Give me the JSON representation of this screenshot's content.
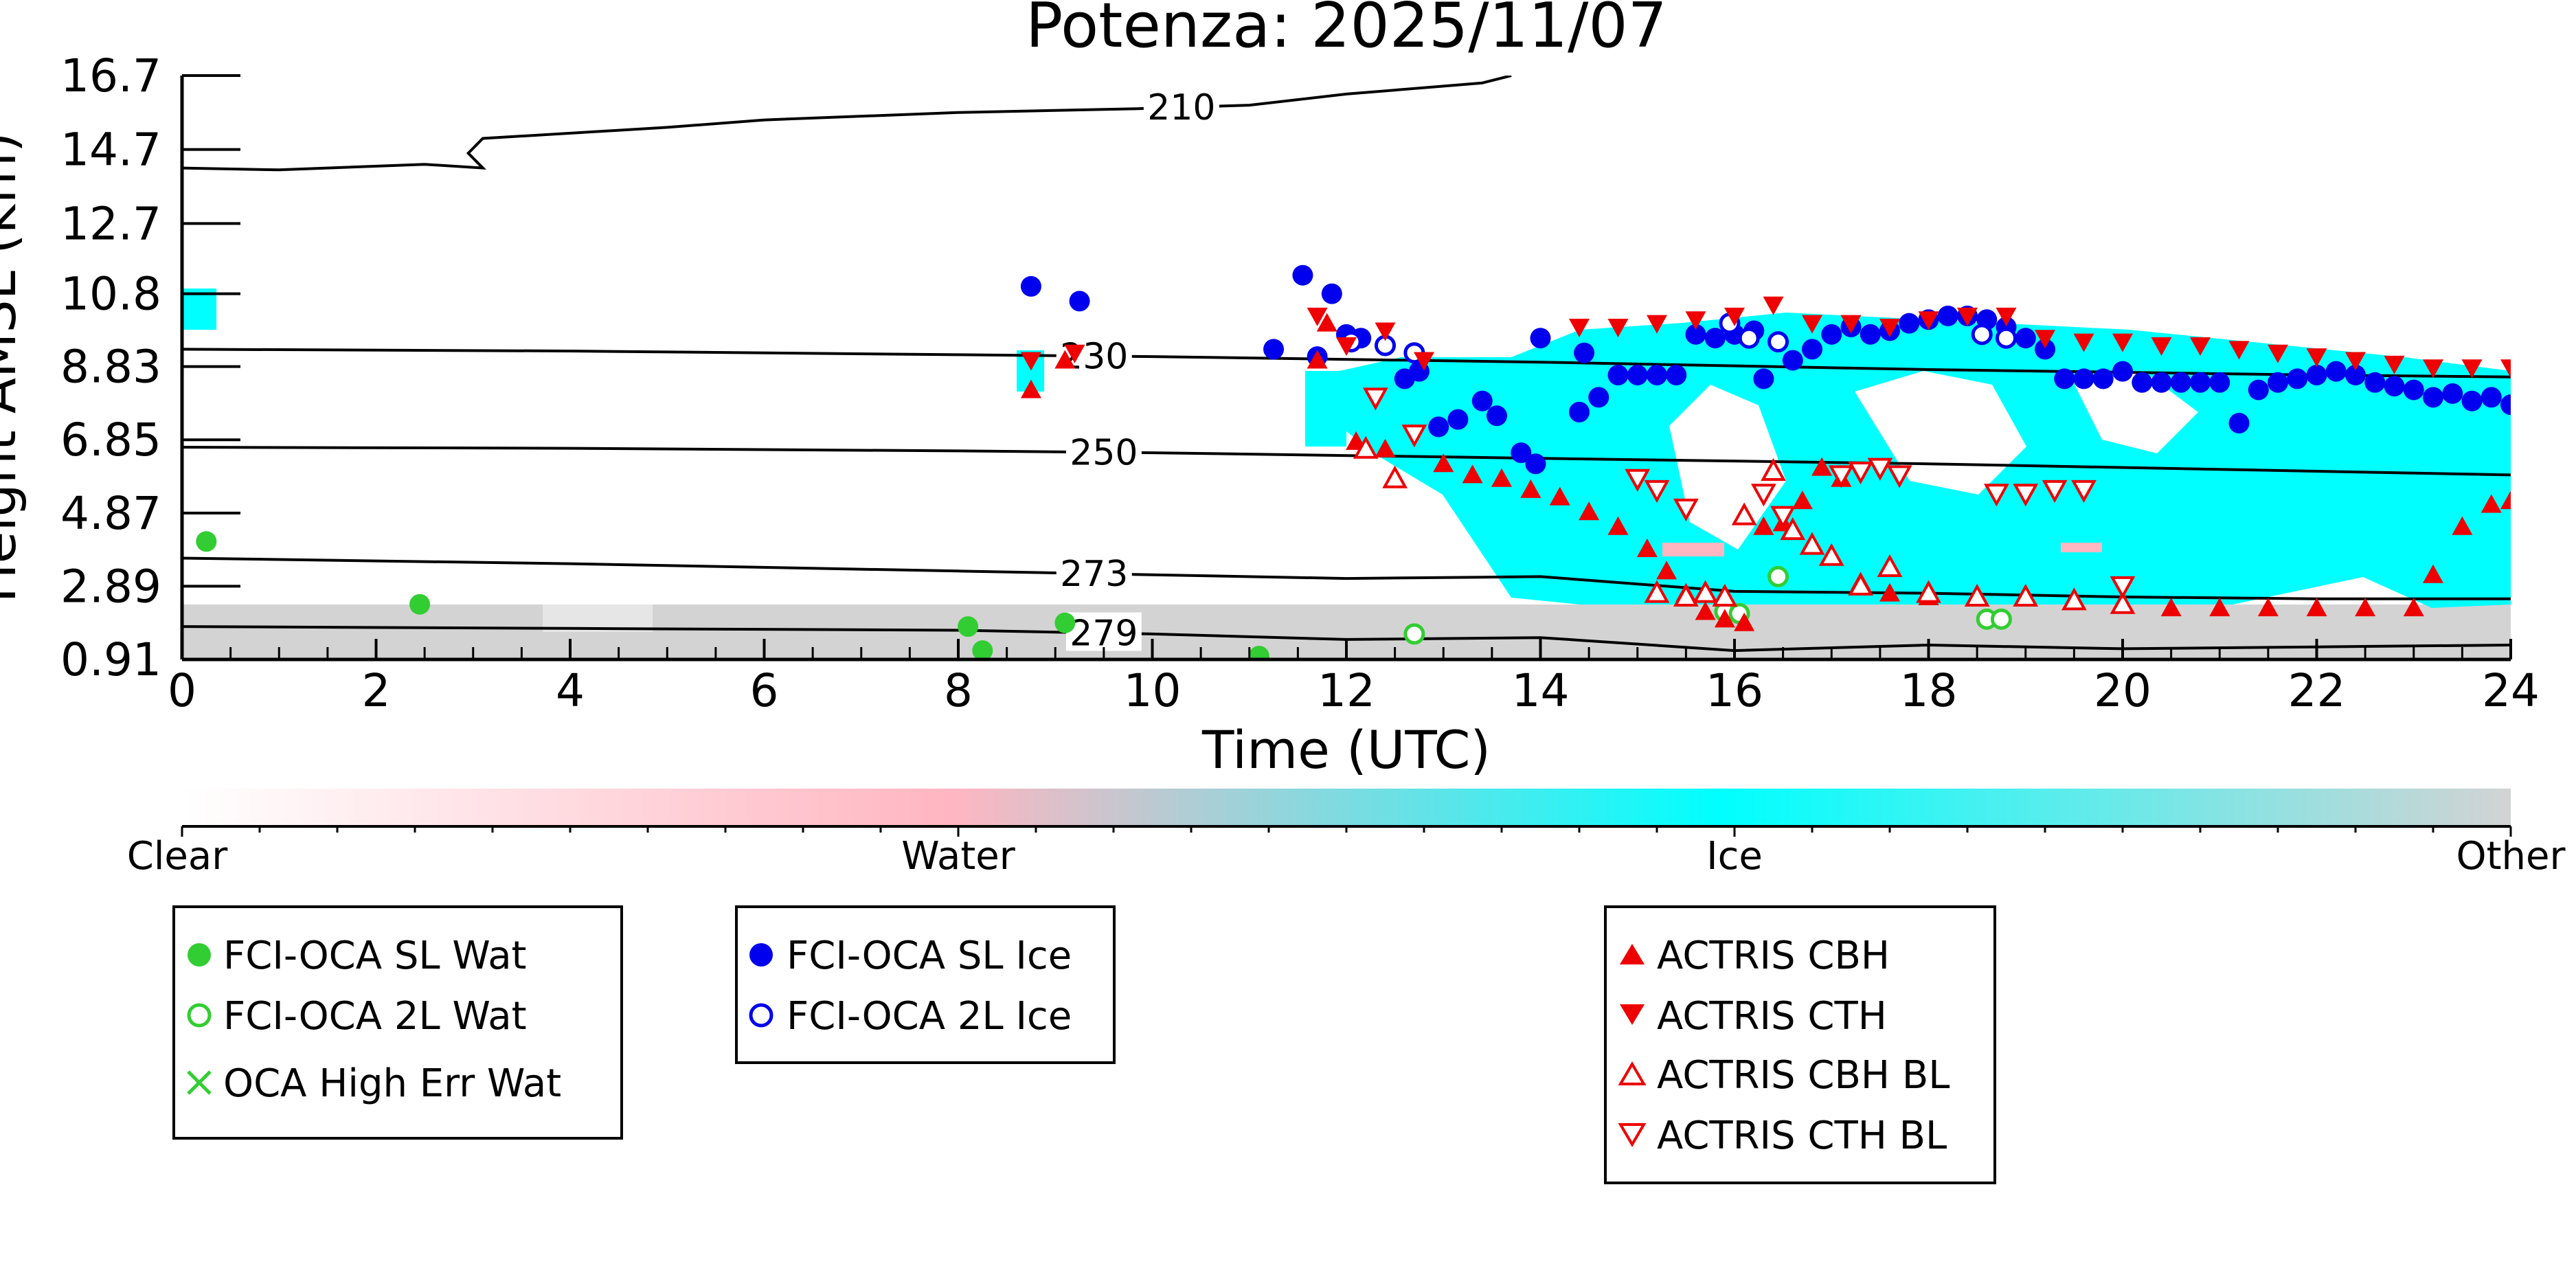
{
  "chart_data": {
    "type": "scatter",
    "title": "Potenza: 2025/11/07",
    "xlabel": "Time (UTC)",
    "ylabel": "Height AMSL (km)",
    "xlim": [
      0,
      24
    ],
    "ylim": [
      0.91,
      16.7
    ],
    "x_ticks": [
      "0",
      "2",
      "4",
      "6",
      "8",
      "10",
      "12",
      "14",
      "16",
      "18",
      "20",
      "22",
      "24"
    ],
    "y_ticks": [
      "0.91",
      "2.89",
      "4.87",
      "6.85",
      "8.83",
      "10.8",
      "12.7",
      "14.7",
      "16.7"
    ],
    "y_tick_values": [
      0.91,
      2.89,
      4.87,
      6.85,
      8.83,
      10.8,
      12.7,
      14.7,
      16.7
    ],
    "grid": false,
    "colorbar": {
      "labels": [
        "Clear",
        "Water",
        "Ice",
        "Other"
      ],
      "colors": [
        "#ffffff",
        "#ffb6c1",
        "#00ffff",
        "#d3d3d3"
      ]
    },
    "contours": [
      {
        "label": "210",
        "label_x": 10.3,
        "points": [
          [
            0,
            14.2
          ],
          [
            1,
            14.15
          ],
          [
            2.5,
            14.3
          ],
          [
            3.1,
            14.2
          ],
          [
            2.95,
            14.6
          ],
          [
            3.1,
            15.0
          ],
          [
            5.0,
            15.3
          ],
          [
            6.0,
            15.5
          ],
          [
            8.0,
            15.7
          ],
          [
            9.8,
            15.8
          ],
          [
            11,
            15.9
          ],
          [
            12,
            16.2
          ],
          [
            13.4,
            16.5
          ],
          [
            13.7,
            16.7
          ]
        ]
      },
      {
        "label": "230",
        "label_x": 9.4,
        "points": [
          [
            0,
            9.3
          ],
          [
            4,
            9.25
          ],
          [
            8,
            9.15
          ],
          [
            10,
            9.1
          ],
          [
            14,
            8.95
          ],
          [
            18,
            8.75
          ],
          [
            22,
            8.6
          ],
          [
            24,
            8.55
          ]
        ]
      },
      {
        "label": "250",
        "label_x": 9.5,
        "points": [
          [
            0,
            6.65
          ],
          [
            4,
            6.62
          ],
          [
            8,
            6.55
          ],
          [
            10,
            6.5
          ],
          [
            14,
            6.35
          ],
          [
            18,
            6.2
          ],
          [
            22,
            6.0
          ],
          [
            24,
            5.9
          ]
        ]
      },
      {
        "label": "273",
        "label_x": 9.4,
        "points": [
          [
            0,
            3.65
          ],
          [
            4,
            3.5
          ],
          [
            8,
            3.3
          ],
          [
            10,
            3.2
          ],
          [
            12,
            3.1
          ],
          [
            14,
            3.15
          ],
          [
            16,
            2.75
          ],
          [
            18,
            2.7
          ],
          [
            20,
            2.6
          ],
          [
            22,
            2.55
          ],
          [
            24,
            2.55
          ]
        ]
      },
      {
        "label": "279",
        "label_x": 9.5,
        "points": [
          [
            0,
            1.8
          ],
          [
            4,
            1.75
          ],
          [
            8,
            1.7
          ],
          [
            10,
            1.6
          ],
          [
            12,
            1.45
          ],
          [
            14,
            1.5
          ],
          [
            16,
            1.15
          ],
          [
            18,
            1.3
          ],
          [
            20,
            1.2
          ],
          [
            22,
            1.25
          ],
          [
            24,
            1.3
          ]
        ]
      }
    ],
    "series": [
      {
        "name": "FCI-OCA SL Wat",
        "marker": "filled-circle",
        "color": "#32cd32",
        "points": [
          [
            0.25,
            4.1
          ],
          [
            2.45,
            2.4
          ],
          [
            8.1,
            1.8
          ],
          [
            8.25,
            1.15
          ],
          [
            9.1,
            1.9
          ],
          [
            11.1,
            1.0
          ]
        ]
      },
      {
        "name": "FCI-OCA 2L Wat",
        "marker": "open-circle",
        "color": "#32cd32",
        "points": [
          [
            12.7,
            1.6
          ],
          [
            15.9,
            2.2
          ],
          [
            16.05,
            2.15
          ],
          [
            16.45,
            3.15
          ],
          [
            18.6,
            2.0
          ],
          [
            18.75,
            2.0
          ]
        ]
      },
      {
        "name": "OCA High Err Wat",
        "marker": "x",
        "color": "#32cd32",
        "points": []
      },
      {
        "name": "FCI-OCA SL Ice",
        "marker": "filled-circle",
        "color": "#0000ee",
        "points": [
          [
            8.75,
            11.0
          ],
          [
            9.25,
            10.6
          ],
          [
            11.25,
            9.3
          ],
          [
            11.55,
            11.3
          ],
          [
            11.7,
            9.1
          ],
          [
            11.85,
            10.8
          ],
          [
            12.0,
            9.7
          ],
          [
            12.15,
            9.6
          ],
          [
            12.6,
            8.5
          ],
          [
            12.75,
            8.7
          ],
          [
            12.95,
            7.2
          ],
          [
            13.15,
            7.4
          ],
          [
            13.4,
            7.9
          ],
          [
            13.55,
            7.5
          ],
          [
            13.8,
            6.5
          ],
          [
            13.95,
            6.2
          ],
          [
            14.0,
            9.6
          ],
          [
            14.4,
            7.6
          ],
          [
            14.6,
            8.0
          ],
          [
            14.45,
            9.2
          ],
          [
            14.8,
            8.6
          ],
          [
            15.0,
            8.6
          ],
          [
            15.2,
            8.6
          ],
          [
            15.4,
            8.6
          ],
          [
            15.6,
            9.7
          ],
          [
            15.8,
            9.6
          ],
          [
            16.0,
            9.7
          ],
          [
            16.2,
            9.8
          ],
          [
            16.3,
            8.5
          ],
          [
            16.6,
            9.0
          ],
          [
            16.8,
            9.3
          ],
          [
            17.0,
            9.7
          ],
          [
            17.2,
            9.9
          ],
          [
            17.4,
            9.7
          ],
          [
            17.6,
            9.8
          ],
          [
            17.8,
            10.0
          ],
          [
            18.0,
            10.1
          ],
          [
            18.2,
            10.2
          ],
          [
            18.4,
            10.2
          ],
          [
            18.6,
            10.1
          ],
          [
            18.8,
            9.9
          ],
          [
            19.0,
            9.6
          ],
          [
            19.2,
            9.3
          ],
          [
            19.4,
            8.5
          ],
          [
            19.6,
            8.5
          ],
          [
            19.8,
            8.5
          ],
          [
            20.0,
            8.7
          ],
          [
            20.2,
            8.4
          ],
          [
            20.4,
            8.4
          ],
          [
            20.6,
            8.4
          ],
          [
            20.8,
            8.4
          ],
          [
            21.0,
            8.4
          ],
          [
            21.2,
            7.3
          ],
          [
            21.4,
            8.2
          ],
          [
            21.6,
            8.4
          ],
          [
            21.8,
            8.5
          ],
          [
            22.0,
            8.6
          ],
          [
            22.2,
            8.7
          ],
          [
            22.4,
            8.6
          ],
          [
            22.6,
            8.4
          ],
          [
            22.8,
            8.3
          ],
          [
            23.0,
            8.2
          ],
          [
            23.2,
            8.0
          ],
          [
            23.4,
            8.1
          ],
          [
            23.6,
            7.9
          ],
          [
            23.8,
            8.0
          ],
          [
            24.0,
            7.8
          ]
        ]
      },
      {
        "name": "FCI-OCA 2L Ice",
        "marker": "open-circle",
        "color": "#0000ee",
        "points": [
          [
            12.05,
            9.5
          ],
          [
            12.4,
            9.4
          ],
          [
            12.7,
            9.2
          ],
          [
            15.95,
            10.0
          ],
          [
            16.15,
            9.6
          ],
          [
            16.45,
            9.5
          ],
          [
            18.55,
            9.7
          ],
          [
            18.8,
            9.6
          ]
        ]
      },
      {
        "name": "ACTRIS CBH",
        "marker": "triangle-up",
        "color": "#ee0000",
        "points": [
          [
            8.75,
            8.2
          ],
          [
            9.1,
            9.0
          ],
          [
            11.7,
            9.0
          ],
          [
            11.8,
            10.0
          ],
          [
            12.1,
            6.8
          ],
          [
            12.4,
            6.6
          ],
          [
            13.0,
            6.2
          ],
          [
            13.3,
            5.9
          ],
          [
            13.6,
            5.8
          ],
          [
            13.9,
            5.5
          ],
          [
            14.2,
            5.3
          ],
          [
            14.5,
            4.9
          ],
          [
            14.8,
            4.5
          ],
          [
            15.1,
            3.9
          ],
          [
            15.3,
            3.3
          ],
          [
            15.5,
            2.7
          ],
          [
            15.7,
            2.2
          ],
          [
            15.9,
            2.0
          ],
          [
            16.1,
            1.9
          ],
          [
            16.3,
            4.5
          ],
          [
            16.5,
            4.6
          ],
          [
            16.7,
            5.2
          ],
          [
            16.9,
            6.1
          ],
          [
            17.1,
            5.8
          ],
          [
            17.3,
            3.0
          ],
          [
            17.6,
            2.7
          ],
          [
            18.0,
            2.6
          ],
          [
            18.5,
            2.6
          ],
          [
            19.0,
            2.6
          ],
          [
            19.5,
            2.5
          ],
          [
            20.0,
            2.4
          ],
          [
            20.5,
            2.3
          ],
          [
            21.0,
            2.3
          ],
          [
            21.5,
            2.3
          ],
          [
            22.0,
            2.3
          ],
          [
            22.5,
            2.3
          ],
          [
            23.0,
            2.3
          ],
          [
            23.2,
            3.2
          ],
          [
            23.5,
            4.5
          ],
          [
            23.8,
            5.1
          ],
          [
            24.0,
            5.2
          ]
        ]
      },
      {
        "name": "ACTRIS CTH",
        "marker": "triangle-down",
        "color": "#ee0000",
        "points": [
          [
            8.75,
            9.0
          ],
          [
            9.2,
            9.2
          ],
          [
            11.7,
            10.2
          ],
          [
            12.0,
            9.4
          ],
          [
            12.4,
            9.8
          ],
          [
            12.8,
            9.0
          ],
          [
            14.4,
            9.9
          ],
          [
            14.8,
            9.9
          ],
          [
            15.2,
            10.0
          ],
          [
            15.6,
            10.1
          ],
          [
            16.0,
            10.2
          ],
          [
            16.4,
            10.5
          ],
          [
            16.8,
            10.0
          ],
          [
            17.2,
            10.0
          ],
          [
            17.6,
            9.9
          ],
          [
            18.0,
            10.1
          ],
          [
            18.4,
            10.2
          ],
          [
            18.8,
            10.2
          ],
          [
            19.2,
            9.6
          ],
          [
            19.6,
            9.5
          ],
          [
            20.0,
            9.5
          ],
          [
            20.4,
            9.4
          ],
          [
            20.8,
            9.4
          ],
          [
            21.2,
            9.3
          ],
          [
            21.6,
            9.2
          ],
          [
            22.0,
            9.1
          ],
          [
            22.4,
            9.0
          ],
          [
            22.8,
            8.9
          ],
          [
            23.2,
            8.8
          ],
          [
            23.6,
            8.8
          ],
          [
            24.0,
            8.8
          ]
        ]
      },
      {
        "name": "ACTRIS CBH BL",
        "marker": "open-triangle-up",
        "color": "#ee0000",
        "points": [
          [
            12.2,
            6.6
          ],
          [
            12.5,
            5.8
          ],
          [
            15.2,
            2.7
          ],
          [
            15.5,
            2.6
          ],
          [
            15.7,
            2.7
          ],
          [
            15.9,
            2.6
          ],
          [
            16.1,
            4.8
          ],
          [
            16.4,
            6.0
          ],
          [
            16.6,
            4.4
          ],
          [
            16.8,
            4.0
          ],
          [
            17.0,
            3.7
          ],
          [
            17.3,
            2.9
          ],
          [
            17.6,
            3.4
          ],
          [
            18.0,
            2.7
          ],
          [
            18.5,
            2.6
          ],
          [
            19.0,
            2.6
          ],
          [
            19.5,
            2.5
          ],
          [
            20.0,
            2.4
          ]
        ]
      },
      {
        "name": "ACTRIS CTH BL",
        "marker": "open-triangle-down",
        "color": "#ee0000",
        "points": [
          [
            12.3,
            8.0
          ],
          [
            12.7,
            7.0
          ],
          [
            15.0,
            5.8
          ],
          [
            15.2,
            5.5
          ],
          [
            15.5,
            5.0
          ],
          [
            16.3,
            5.4
          ],
          [
            16.5,
            4.8
          ],
          [
            17.1,
            5.9
          ],
          [
            17.3,
            6.0
          ],
          [
            17.5,
            6.1
          ],
          [
            17.7,
            5.9
          ],
          [
            18.7,
            5.4
          ],
          [
            19.0,
            5.4
          ],
          [
            19.3,
            5.5
          ],
          [
            19.6,
            5.5
          ],
          [
            20.0,
            2.9
          ]
        ]
      }
    ],
    "legends": [
      [
        "FCI-OCA SL Wat",
        "FCI-OCA 2L Wat",
        "OCA High Err Wat"
      ],
      [
        "FCI-OCA SL Ice",
        "FCI-OCA 2L Ice"
      ],
      [
        "ACTRIS CBH",
        "ACTRIS CTH",
        "ACTRIS CBH BL",
        "ACTRIS CTH BL"
      ]
    ]
  }
}
